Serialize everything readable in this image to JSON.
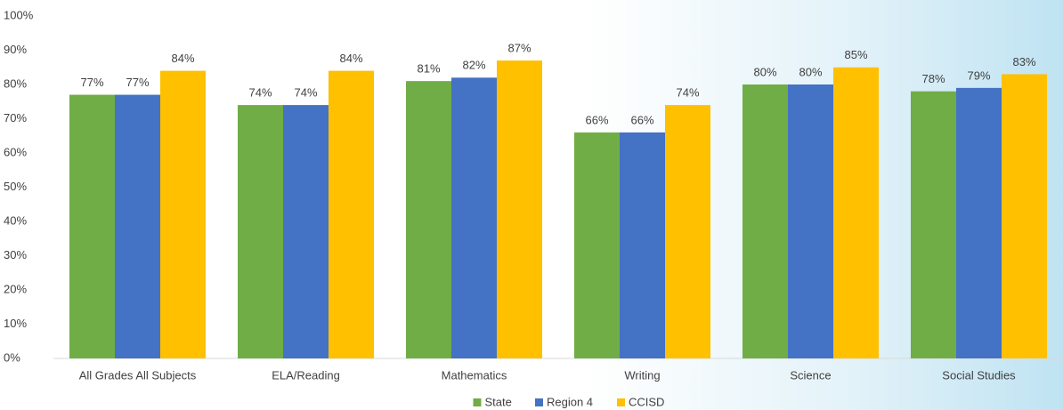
{
  "chart_data": {
    "type": "bar",
    "categories": [
      "All Grades All Subjects",
      "ELA/Reading",
      "Mathematics",
      "Writing",
      "Science",
      "Social Studies"
    ],
    "series": [
      {
        "name": "State",
        "color": "#70ad47",
        "values": [
          77,
          74,
          81,
          66,
          80,
          78
        ],
        "value_labels": [
          "77%",
          "74%",
          "81%",
          "66%",
          "80%",
          "78%"
        ]
      },
      {
        "name": "Region 4",
        "color": "#4472c4",
        "values": [
          77,
          74,
          82,
          66,
          80,
          79
        ],
        "value_labels": [
          "77%",
          "74%",
          "82%",
          "66%",
          "80%",
          "79%"
        ]
      },
      {
        "name": "CCISD",
        "color": "#ffc000",
        "values": [
          84,
          84,
          87,
          74,
          85,
          83
        ],
        "value_labels": [
          "84%",
          "84%",
          "87%",
          "74%",
          "85%",
          "83%"
        ]
      }
    ],
    "ylim": [
      0,
      100
    ],
    "yticks": [
      {
        "value": 0,
        "label": "0%"
      },
      {
        "value": 10,
        "label": "10%"
      },
      {
        "value": 20,
        "label": "20%"
      },
      {
        "value": 30,
        "label": "30%"
      },
      {
        "value": 40,
        "label": "40%"
      },
      {
        "value": 50,
        "label": "50%"
      },
      {
        "value": 60,
        "label": "60%"
      },
      {
        "value": 70,
        "label": "70%"
      },
      {
        "value": 80,
        "label": "80%"
      },
      {
        "value": 90,
        "label": "90%"
      },
      {
        "value": 100,
        "label": "100%"
      }
    ],
    "grid": false,
    "legend": "bottom"
  }
}
